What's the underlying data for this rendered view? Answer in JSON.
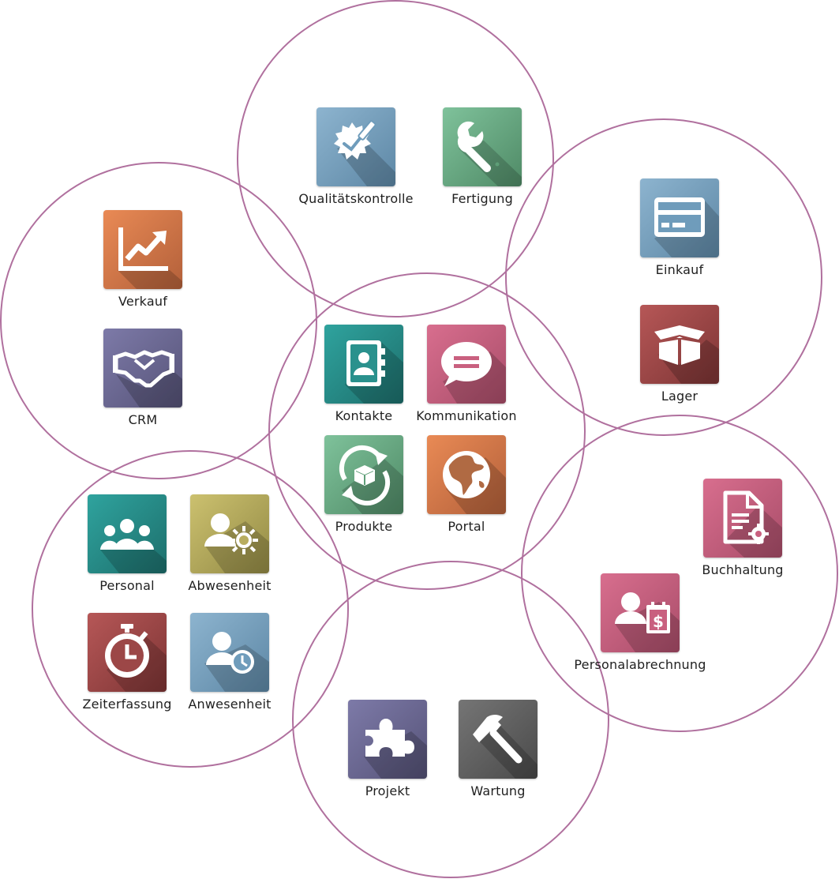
{
  "colors": {
    "circle_stroke": "#b0709e",
    "orange": [
      "#e98a55",
      "#b3603a"
    ],
    "indigo": [
      "#7d7aa8",
      "#565378"
    ],
    "steelblue": [
      "#8db4cf",
      "#5d87a5"
    ],
    "green": [
      "#7fc29b",
      "#4f8a66"
    ],
    "teal": [
      "#2fa39e",
      "#1d6f6c"
    ],
    "rose": [
      "#d86e8e",
      "#a94d69"
    ],
    "darkred": [
      "#b65757",
      "#7e3535"
    ],
    "olive": [
      "#ccc16f",
      "#938a45"
    ],
    "gray": [
      "#757575",
      "#4a4a4a"
    ]
  },
  "apps": {
    "qualitaet": {
      "label": "Qualitätskontrolle",
      "icon": "quality-seal-icon",
      "color": "steelblue"
    },
    "fertigung": {
      "label": "Fertigung",
      "icon": "wrench-icon",
      "color": "green"
    },
    "einkauf": {
      "label": "Einkauf",
      "icon": "credit-card-icon",
      "color": "steelblue"
    },
    "lager": {
      "label": "Lager",
      "icon": "open-box-icon",
      "color": "darkred"
    },
    "verkauf": {
      "label": "Verkauf",
      "icon": "trend-chart-icon",
      "color": "orange"
    },
    "crm": {
      "label": "CRM",
      "icon": "handshake-icon",
      "color": "indigo"
    },
    "kontakte": {
      "label": "Kontakte",
      "icon": "address-book-icon",
      "color": "teal"
    },
    "kommunikation": {
      "label": "Kommunikation",
      "icon": "chat-bubble-icon",
      "color": "rose"
    },
    "produkte": {
      "label": "Produkte",
      "icon": "product-cycle-icon",
      "color": "green"
    },
    "portal": {
      "label": "Portal",
      "icon": "globe-icon",
      "color": "orange"
    },
    "personal": {
      "label": "Personal",
      "icon": "people-group-icon",
      "color": "teal"
    },
    "abwesenheit": {
      "label": "Abwesenheit",
      "icon": "user-sun-icon",
      "color": "olive"
    },
    "zeiterfassung": {
      "label": "Zeiterfassung",
      "icon": "stopwatch-icon",
      "color": "darkred"
    },
    "anwesenheit": {
      "label": "Anwesenheit",
      "icon": "user-clock-icon",
      "color": "steelblue"
    },
    "buchhaltung": {
      "label": "Buchhaltung",
      "icon": "document-gear-icon",
      "color": "rose"
    },
    "personalabrechnung": {
      "label": "Personalabrechnung",
      "icon": "user-payslip-icon",
      "color": "rose"
    },
    "projekt": {
      "label": "Projekt",
      "icon": "puzzle-icon",
      "color": "indigo"
    },
    "wartung": {
      "label": "Wartung",
      "icon": "hammer-icon",
      "color": "gray"
    }
  }
}
